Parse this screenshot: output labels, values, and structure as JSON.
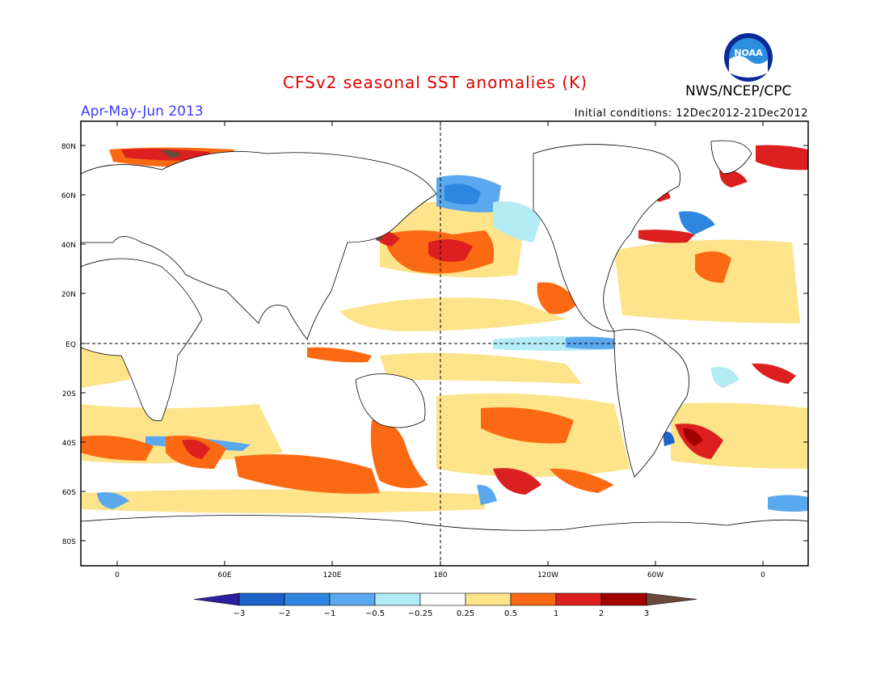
{
  "header": {
    "title": "CFSv2 seasonal SST anomalies (K)",
    "season": "Apr-May-Jun 2013",
    "initial_conditions": "Initial conditions: 12Dec2012-21Dec2012",
    "organization": "NWS/NCEP/CPC",
    "logo_text": "NOAA"
  },
  "axes": {
    "lat_labels": [
      "80N",
      "60N",
      "40N",
      "20N",
      "EQ",
      "20S",
      "40S",
      "60S",
      "80S"
    ],
    "lon_labels": [
      "0",
      "60E",
      "120E",
      "180",
      "120W",
      "60W",
      "0"
    ]
  },
  "colorbar": {
    "tick_labels": [
      "-3",
      "-2",
      "-1",
      "-0.5",
      "-0.25",
      "0.25",
      "0.5",
      "1",
      "2",
      "3"
    ],
    "colors": [
      "#2d1fa0",
      "#1c62c8",
      "#2f86e0",
      "#5aa8ee",
      "#b4ecf5",
      "#ffffff",
      "#fde38a",
      "#fb6a13",
      "#dc1f1f",
      "#a30000",
      "#6b4a3a"
    ]
  }
}
